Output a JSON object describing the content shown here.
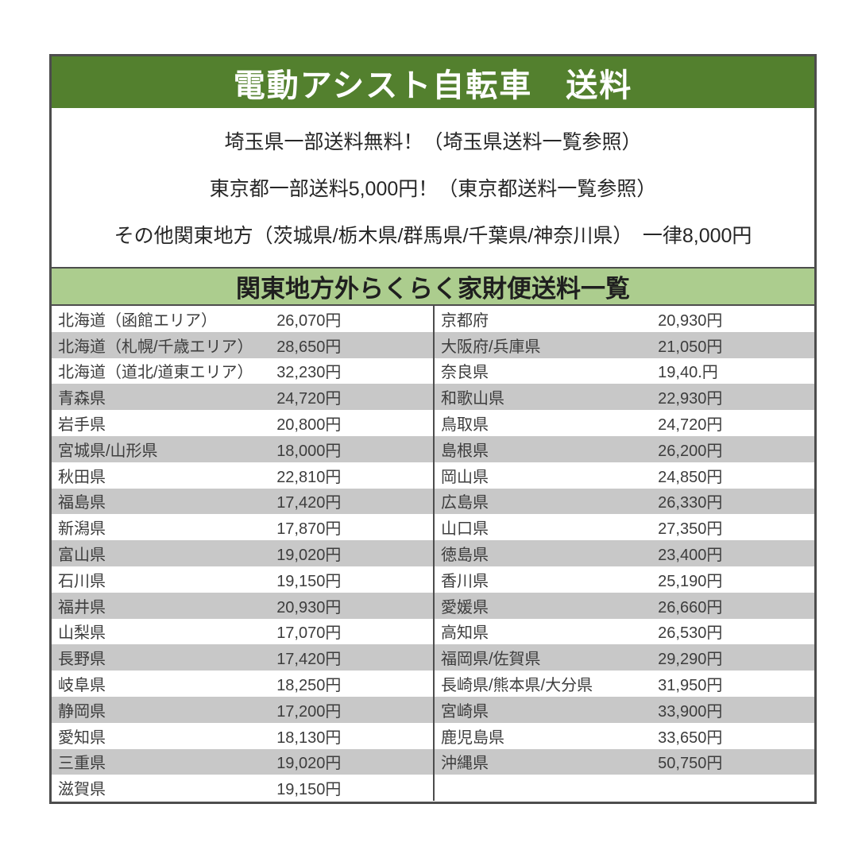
{
  "page": {
    "title": "電動アシスト自転車　送料"
  },
  "notes": {
    "line1": "埼玉県一部送料無料！（埼玉県送料一覧参照）",
    "line2": "東京都一部送料5,000円！（東京都送料一覧参照）",
    "line3": "その他関東地方（茨城県/栃木県/群馬県/千葉県/神奈川県）　一律8,000円"
  },
  "table": {
    "title": "関東地方外らくらく家財便送料一覧",
    "rows": [
      [
        "北海道（函館エリア）",
        "26,070円",
        "京都府",
        "20,930円"
      ],
      [
        "北海道（札幌/千歳エリア）",
        "28,650円",
        "大阪府/兵庫県",
        "21,050円"
      ],
      [
        "北海道（道北/道東エリア）",
        "32,230円",
        "奈良県",
        "19,40.円"
      ],
      [
        "青森県",
        "24,720円",
        "和歌山県",
        "22,930円"
      ],
      [
        "岩手県",
        "20,800円",
        "鳥取県",
        "24,720円"
      ],
      [
        "宮城県/山形県",
        "18,000円",
        "島根県",
        "26,200円"
      ],
      [
        "秋田県",
        "22,810円",
        "岡山県",
        "24,850円"
      ],
      [
        "福島県",
        "17,420円",
        "広島県",
        "26,330円"
      ],
      [
        "新潟県",
        "17,870円",
        "山口県",
        "27,350円"
      ],
      [
        "富山県",
        "19,020円",
        "徳島県",
        "23,400円"
      ],
      [
        "石川県",
        "19,150円",
        "香川県",
        "25,190円"
      ],
      [
        "福井県",
        "20,930円",
        "愛媛県",
        "26,660円"
      ],
      [
        "山梨県",
        "17,070円",
        "高知県",
        "26,530円"
      ],
      [
        "長野県",
        "17,420円",
        "福岡県/佐賀県",
        "29,290円"
      ],
      [
        "岐阜県",
        "18,250円",
        "長崎県/熊本県/大分県",
        "31,950円"
      ],
      [
        "静岡県",
        "17,200円",
        "宮崎県",
        "33,900円"
      ],
      [
        "愛知県",
        "18,130円",
        "鹿児島県",
        "33,650円"
      ],
      [
        "三重県",
        "19,020円",
        "沖縄県",
        "50,750円"
      ],
      [
        "滋賀県",
        "19,150円",
        "",
        ""
      ]
    ]
  },
  "colors": {
    "header_green": "#53802e",
    "subheader_green": "#accd8e",
    "row_gray": "#c8c8c8",
    "border_dark": "#4d4d4d"
  }
}
